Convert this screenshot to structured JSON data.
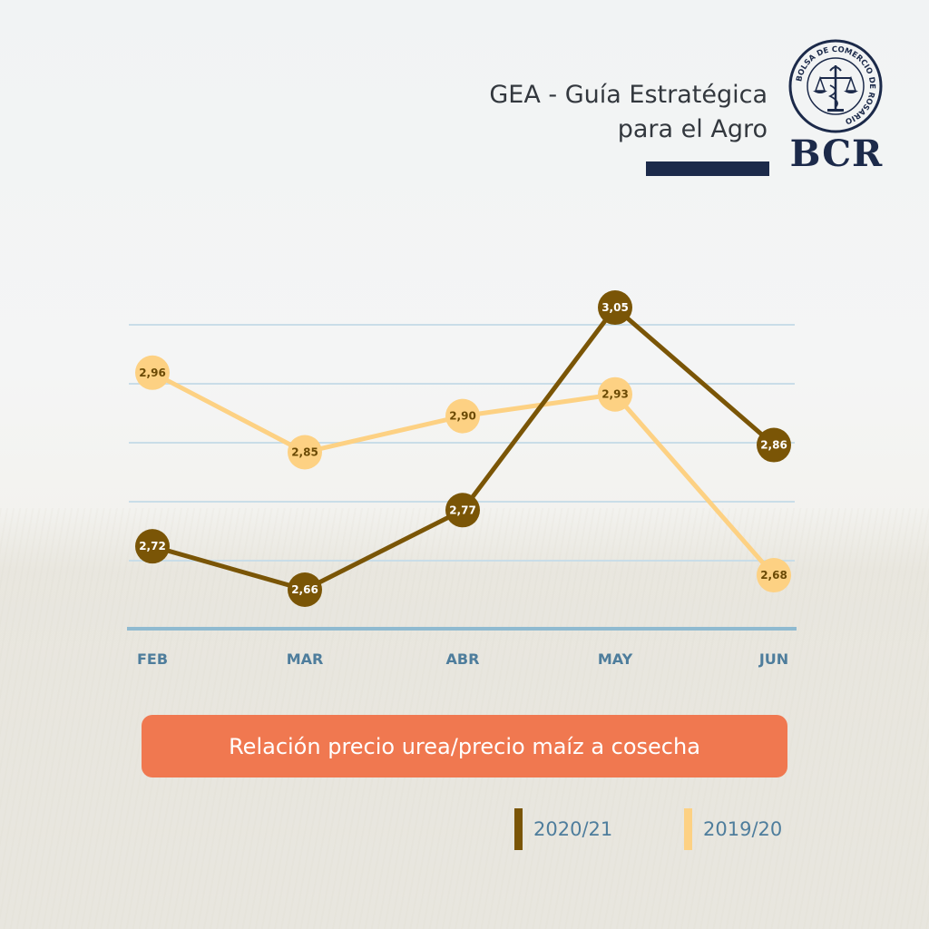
{
  "header": {
    "title_line1": "GEA - Guía Estratégica",
    "title_line2": "para el Agro",
    "logo_text": "BCR",
    "seal_text": "BOLSA DE COMERCIO DE ROSARIO"
  },
  "colors": {
    "series_2020_21": "#7a5506",
    "series_2019_20": "#fdd183",
    "axis": "#8fbad0",
    "grid": "#c9dde8",
    "caption_bg": "#f07850",
    "navy": "#1c2a4a"
  },
  "chart_data": {
    "type": "line",
    "title": "Relación precio urea/precio maíz a cosecha",
    "categories": [
      "FEB",
      "MAR",
      "ABR",
      "MAY",
      "JUN"
    ],
    "series": [
      {
        "name": "2020/21",
        "values": [
          "2,72",
          "2,66",
          "2,77",
          "3,05",
          "2,86"
        ],
        "numeric": [
          2.72,
          2.66,
          2.77,
          3.05,
          2.86
        ]
      },
      {
        "name": "2019/20",
        "values": [
          "2,96",
          "2,85",
          "2,90",
          "2,93",
          "2,68"
        ],
        "numeric": [
          2.96,
          2.85,
          2.9,
          2.93,
          2.68
        ]
      }
    ],
    "grid": true,
    "legend": "bottom-right"
  },
  "legend": [
    {
      "label": "2020/21"
    },
    {
      "label": "2019/20"
    }
  ]
}
